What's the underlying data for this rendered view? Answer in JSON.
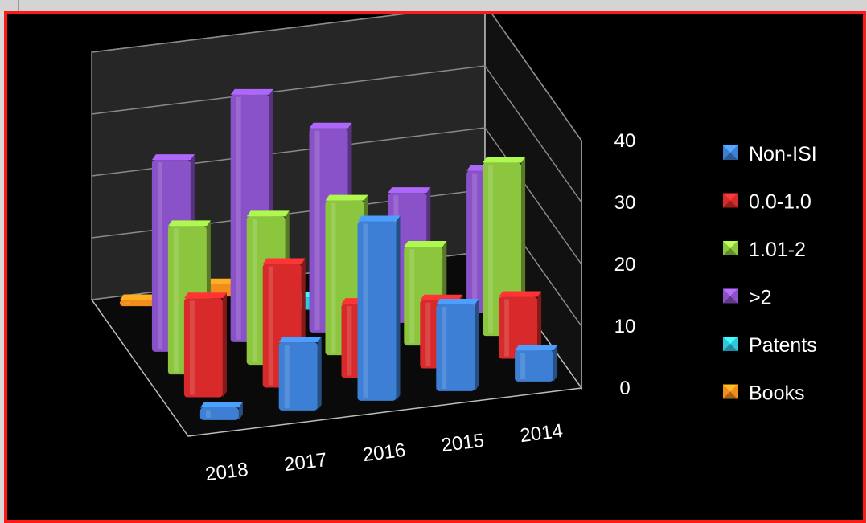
{
  "chart_data": {
    "type": "bar",
    "categories": [
      "2018",
      "2017",
      "2016",
      "2015",
      "2014"
    ],
    "series": [
      {
        "name": "Non-ISI",
        "color": "#3d7fd4",
        "values": [
          2,
          11,
          29,
          14,
          5
        ]
      },
      {
        "name": "0.0-1.0",
        "color": "#d82a2a",
        "values": [
          16,
          20,
          12,
          11,
          10
        ]
      },
      {
        "name": "1.01-2",
        "color": "#8cc63f",
        "values": [
          24,
          24,
          25,
          16,
          28
        ]
      },
      {
        "name": ">2",
        "color": "#8a52c8",
        "values": [
          31,
          40,
          33,
          21,
          23
        ]
      },
      {
        "name": "Patents",
        "color": "#2ec7dc",
        "values": [
          0,
          0,
          2,
          2,
          0
        ]
      },
      {
        "name": "Books",
        "color": "#f28c1a",
        "values": [
          1,
          2,
          0,
          0,
          0
        ]
      }
    ],
    "y_ticks": [
      "0",
      "10",
      "20",
      "30",
      "40"
    ],
    "ylim": [
      0,
      40
    ],
    "grid": true,
    "legend_position": "right"
  }
}
